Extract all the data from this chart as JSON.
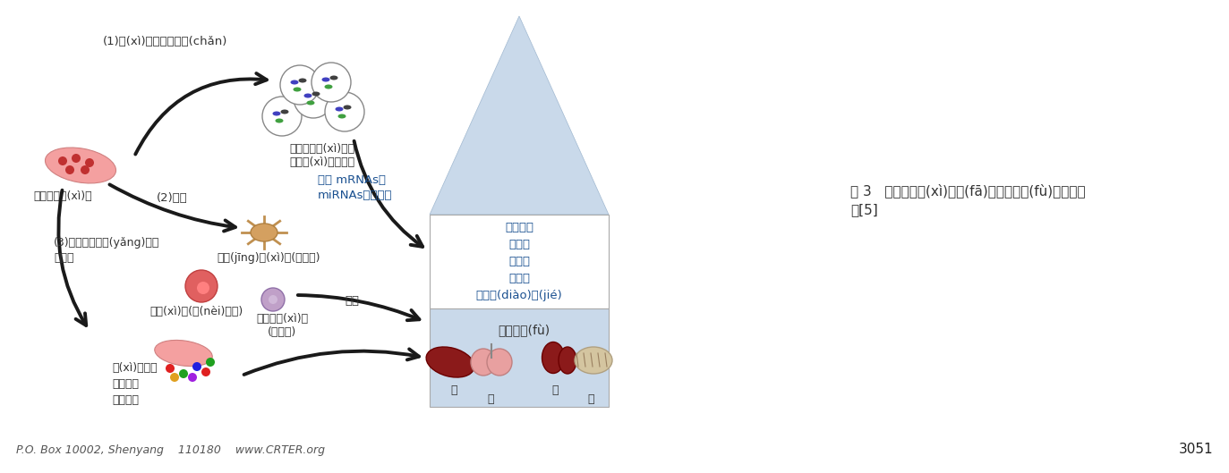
{
  "bg_color": "#ffffff",
  "fig_width": 13.73,
  "fig_height": 5.29,
  "texts": {
    "label_1": "(1)細(xì)胞外囊泡生產(chǎn)",
    "label_2": "間充質干細(xì)胞",
    "label_2b": "(2)分化",
    "label_3": "(3)生物活性營養(yǎng)分子\n的分泌",
    "label_4": "間充質干細(xì)胞來\n源的細(xì)胞外囊泡",
    "label_5": "翻譯 mRNAs、\nmiRNAs、蛋白等",
    "label_6": "神經(jīng)細(xì)胞(外胚層)",
    "label_7": "肝細(xì)胞(內(nèi)胚層)",
    "label_8": "平滑肌細(xì)胞\n(中胚層)",
    "label_9": "移植",
    "label_10": "細(xì)胞因子\n趨化因子\n生長因子",
    "label_11": "血管再生\n抗感染\n抗凋亡\n抗氧化\n免疫調(diào)節(jié)",
    "label_12": "組織修復(fù)",
    "label_13": "肝",
    "label_14": "肺",
    "label_15": "腎",
    "label_16": "腦",
    "footer": "P.O. Box 10002, Shenyang    110180    www.CRTER.org",
    "page_num": "3051",
    "fig_caption": "圖 3   間充質干細(xì)胞發(fā)揮組織修復(fù)功能的途\n徑[5]"
  },
  "colors": {
    "arrow_black": "#1a1a1a",
    "arrow_head": "#111111",
    "box_border": "#aaaaaa",
    "box_fill_upper": "#c9d9ea",
    "box_fill_lower": "#c9d9ea",
    "triangle_fill": "#c9d9ea",
    "triangle_edge": "#a0b8d0",
    "text_main": "#333333",
    "text_blue": "#1a5090",
    "footer_color": "#555555",
    "page_color": "#222222",
    "organ_bg": "#c9d9ea",
    "white_box": "#ffffff"
  }
}
